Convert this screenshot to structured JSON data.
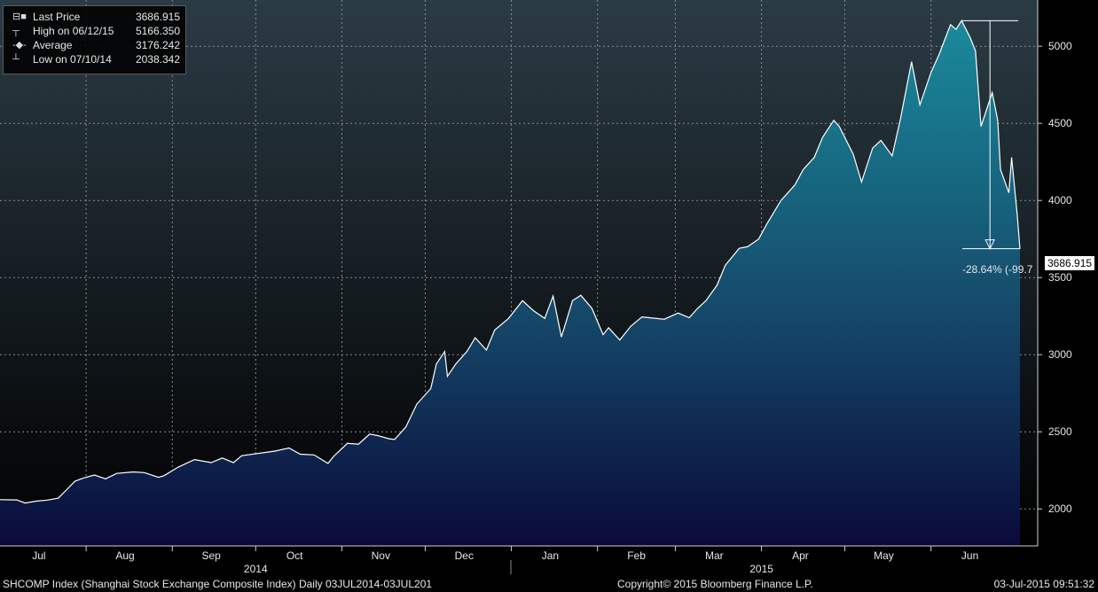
{
  "legend": {
    "items": [
      {
        "glyph": "⊟■",
        "label": "Last Price",
        "value": "3686.915"
      },
      {
        "glyph": "┬",
        "label": "High on 06/12/15",
        "value": "5166.350"
      },
      {
        "glyph": "-◆-",
        "label": "Average",
        "value": "3176.242"
      },
      {
        "glyph": "┴",
        "label": "Low on 07/10/14",
        "value": "2038.342"
      }
    ]
  },
  "annotation": {
    "change_text": "-28.64% (-99.7",
    "last_price_tag": "3686.915"
  },
  "footer": {
    "left": "SHCOMP Index (Shanghai Stock Exchange Composite Index)  Daily 03JUL2014-03JUL201",
    "center": "Copyright© 2015 Bloomberg Finance L.P.",
    "right": "03-Jul-2015 09:51:32"
  },
  "colors": {
    "line": "#ffffff",
    "fill_top": "#1a8a9c",
    "fill_bottom": "#0a0a3a",
    "grid": "#7a7a7a",
    "bg_top": "#2a3a44",
    "bg_bottom": "#000000"
  },
  "chart_data": {
    "type": "area",
    "ylim": [
      1760,
      5300
    ],
    "y_ticks": [
      "2000",
      "2500",
      "3000",
      "3500",
      "4000",
      "4500",
      "5000"
    ],
    "x_month_labels": [
      {
        "label": "Jul",
        "date": "2014-07-15"
      },
      {
        "label": "Aug",
        "date": "2014-08-15"
      },
      {
        "label": "Sep",
        "date": "2014-09-15"
      },
      {
        "label": "Oct",
        "date": "2014-10-15"
      },
      {
        "label": "Nov",
        "date": "2014-11-15"
      },
      {
        "label": "Dec",
        "date": "2014-12-15"
      },
      {
        "label": "Jan",
        "date": "2015-01-15"
      },
      {
        "label": "Feb",
        "date": "2015-02-15"
      },
      {
        "label": "Mar",
        "date": "2015-03-15"
      },
      {
        "label": "Apr",
        "date": "2015-04-15"
      },
      {
        "label": "May",
        "date": "2015-05-15"
      },
      {
        "label": "Jun",
        "date": "2015-06-15"
      }
    ],
    "x_year_labels": [
      {
        "label": "2014",
        "date": "2014-10-01"
      },
      {
        "label": "2015",
        "date": "2015-04-01"
      }
    ],
    "series": [
      {
        "points": [
          [
            "2014-07-01",
            2060
          ],
          [
            "2014-07-07",
            2058
          ],
          [
            "2014-07-10",
            2038
          ],
          [
            "2014-07-14",
            2050
          ],
          [
            "2014-07-18",
            2057
          ],
          [
            "2014-07-22",
            2070
          ],
          [
            "2014-07-25",
            2125
          ],
          [
            "2014-07-28",
            2180
          ],
          [
            "2014-07-31",
            2200
          ],
          [
            "2014-08-04",
            2220
          ],
          [
            "2014-08-08",
            2195
          ],
          [
            "2014-08-12",
            2230
          ],
          [
            "2014-08-18",
            2240
          ],
          [
            "2014-08-22",
            2235
          ],
          [
            "2014-08-27",
            2205
          ],
          [
            "2014-08-29",
            2215
          ],
          [
            "2014-09-03",
            2270
          ],
          [
            "2014-09-09",
            2320
          ],
          [
            "2014-09-15",
            2300
          ],
          [
            "2014-09-19",
            2330
          ],
          [
            "2014-09-23",
            2300
          ],
          [
            "2014-09-26",
            2345
          ],
          [
            "2014-10-08",
            2375
          ],
          [
            "2014-10-13",
            2395
          ],
          [
            "2014-10-17",
            2355
          ],
          [
            "2014-10-22",
            2350
          ],
          [
            "2014-10-27",
            2295
          ],
          [
            "2014-10-29",
            2340
          ],
          [
            "2014-11-03",
            2425
          ],
          [
            "2014-11-07",
            2420
          ],
          [
            "2014-11-11",
            2485
          ],
          [
            "2014-11-14",
            2475
          ],
          [
            "2014-11-18",
            2455
          ],
          [
            "2014-11-20",
            2450
          ],
          [
            "2014-11-24",
            2530
          ],
          [
            "2014-11-28",
            2680
          ],
          [
            "2014-12-03",
            2780
          ],
          [
            "2014-12-05",
            2940
          ],
          [
            "2014-12-08",
            3020
          ],
          [
            "2014-12-09",
            2860
          ],
          [
            "2014-12-12",
            2940
          ],
          [
            "2014-12-16",
            3020
          ],
          [
            "2014-12-19",
            3110
          ],
          [
            "2014-12-23",
            3030
          ],
          [
            "2014-12-26",
            3160
          ],
          [
            "2014-12-31",
            3235
          ],
          [
            "2015-01-05",
            3350
          ],
          [
            "2015-01-09",
            3285
          ],
          [
            "2015-01-13",
            3235
          ],
          [
            "2015-01-16",
            3380
          ],
          [
            "2015-01-19",
            3115
          ],
          [
            "2015-01-23",
            3350
          ],
          [
            "2015-01-26",
            3385
          ],
          [
            "2015-01-30",
            3300
          ],
          [
            "2015-02-03",
            3130
          ],
          [
            "2015-02-05",
            3175
          ],
          [
            "2015-02-09",
            3095
          ],
          [
            "2015-02-13",
            3185
          ],
          [
            "2015-02-17",
            3245
          ],
          [
            "2015-02-25",
            3230
          ],
          [
            "2015-03-02",
            3270
          ],
          [
            "2015-03-06",
            3240
          ],
          [
            "2015-03-09",
            3300
          ],
          [
            "2015-03-12",
            3350
          ],
          [
            "2015-03-16",
            3450
          ],
          [
            "2015-03-19",
            3580
          ],
          [
            "2015-03-24",
            3690
          ],
          [
            "2015-03-27",
            3700
          ],
          [
            "2015-03-31",
            3750
          ],
          [
            "2015-04-03",
            3850
          ],
          [
            "2015-04-08",
            4000
          ],
          [
            "2015-04-13",
            4100
          ],
          [
            "2015-04-16",
            4200
          ],
          [
            "2015-04-20",
            4280
          ],
          [
            "2015-04-23",
            4410
          ],
          [
            "2015-04-27",
            4520
          ],
          [
            "2015-04-29",
            4480
          ],
          [
            "2015-05-04",
            4300
          ],
          [
            "2015-05-07",
            4120
          ],
          [
            "2015-05-11",
            4340
          ],
          [
            "2015-05-14",
            4390
          ],
          [
            "2015-05-18",
            4290
          ],
          [
            "2015-05-21",
            4530
          ],
          [
            "2015-05-25",
            4900
          ],
          [
            "2015-05-28",
            4620
          ],
          [
            "2015-06-01",
            4830
          ],
          [
            "2015-06-04",
            4950
          ],
          [
            "2015-06-08",
            5140
          ],
          [
            "2015-06-10",
            5110
          ],
          [
            "2015-06-12",
            5166
          ],
          [
            "2015-06-15",
            5060
          ],
          [
            "2015-06-17",
            4970
          ],
          [
            "2015-06-19",
            4480
          ],
          [
            "2015-06-23",
            4700
          ],
          [
            "2015-06-25",
            4520
          ],
          [
            "2015-06-26",
            4200
          ],
          [
            "2015-06-29",
            4050
          ],
          [
            "2015-06-30",
            4280
          ],
          [
            "2015-07-02",
            3910
          ],
          [
            "2015-07-03",
            3687
          ]
        ]
      }
    ]
  }
}
